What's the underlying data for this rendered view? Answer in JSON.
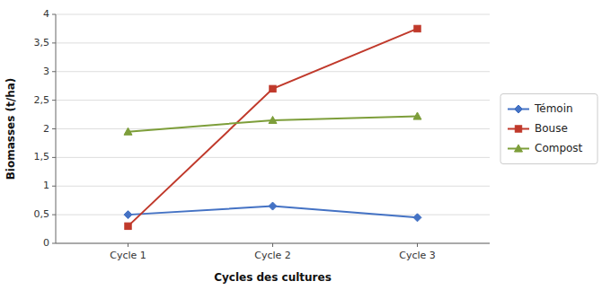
{
  "chart_data": {
    "type": "line",
    "x_label": "Cycles des cultures",
    "y_label": "Biomasses (t/ha)",
    "categories": [
      "Cycle 1",
      "Cycle 2",
      "Cycle 3"
    ],
    "series": [
      {
        "name": "Témoin",
        "color": "#4472C4",
        "marker": "diamond",
        "values": [
          0.5,
          0.65,
          0.45
        ]
      },
      {
        "name": "Bouse",
        "color": "#C0392B",
        "marker": "square",
        "values": [
          0.3,
          2.7,
          3.75
        ]
      },
      {
        "name": "Compost",
        "color": "#7D9E3A",
        "marker": "triangle",
        "values": [
          1.95,
          2.15,
          2.22
        ]
      }
    ],
    "ylim": [
      0,
      4
    ],
    "yticks": [
      0,
      {
        "value": 0.5,
        "label": "0,5"
      },
      1,
      {
        "value": 1.5,
        "label": "1,5"
      },
      2,
      {
        "value": 2.5,
        "label": "2,5"
      },
      3,
      {
        "value": 3.5,
        "label": "3,5"
      },
      4
    ],
    "grid": true,
    "legend": "right"
  }
}
